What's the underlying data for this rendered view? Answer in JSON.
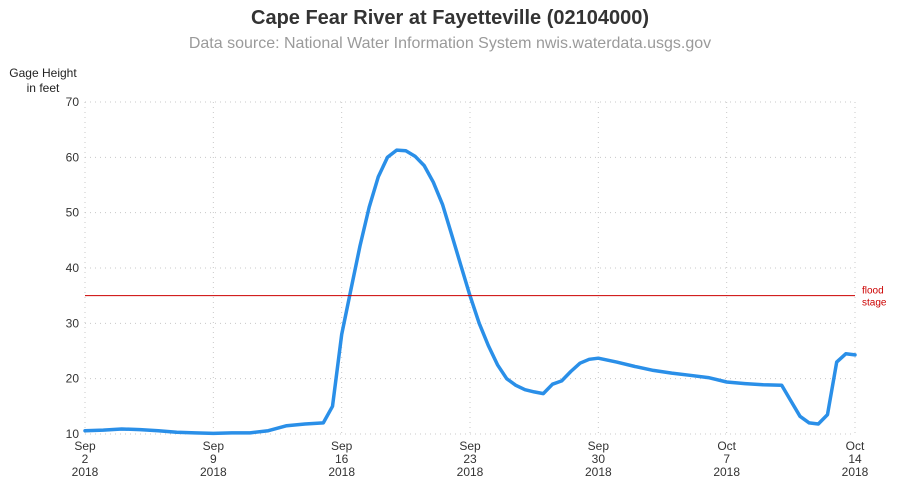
{
  "chart_data": {
    "type": "line",
    "title": "Cape Fear River at Fayetteville (02104000)",
    "subtitle": "Data source: National Water Information System nwis.waterdata.usgs.gov",
    "ylabel_lines": [
      "Gage Height",
      "in feet"
    ],
    "xlabel": "",
    "ylim": [
      10,
      70
    ],
    "yticks": [
      10,
      20,
      30,
      40,
      50,
      60,
      70
    ],
    "xlim": [
      "2018-09-02",
      "2018-10-14"
    ],
    "xticks": [
      {
        "date": "2018-09-02",
        "lines": [
          "Sep",
          "2",
          "2018"
        ]
      },
      {
        "date": "2018-09-09",
        "lines": [
          "Sep",
          "9",
          "2018"
        ]
      },
      {
        "date": "2018-09-16",
        "lines": [
          "Sep",
          "16",
          "2018"
        ]
      },
      {
        "date": "2018-09-23",
        "lines": [
          "Sep",
          "23",
          "2018"
        ]
      },
      {
        "date": "2018-09-30",
        "lines": [
          "Sep",
          "30",
          "2018"
        ]
      },
      {
        "date": "2018-10-07",
        "lines": [
          "Oct",
          "7",
          "2018"
        ]
      },
      {
        "date": "2018-10-14",
        "lines": [
          "Oct",
          "14",
          "2018"
        ]
      }
    ],
    "grid": "dotted",
    "series": [
      {
        "color": "#2a8fe8",
        "points": [
          [
            "2018-09-02",
            10.6
          ],
          [
            "2018-09-03",
            10.7
          ],
          [
            "2018-09-04",
            10.9
          ],
          [
            "2018-09-05",
            10.8
          ],
          [
            "2018-09-06",
            10.6
          ],
          [
            "2018-09-07",
            10.3
          ],
          [
            "2018-09-08",
            10.2
          ],
          [
            "2018-09-09",
            10.1
          ],
          [
            "2018-09-10",
            10.2
          ],
          [
            "2018-09-11",
            10.2
          ],
          [
            "2018-09-12",
            10.6
          ],
          [
            "2018-09-13",
            11.5
          ],
          [
            "2018-09-14",
            11.8
          ],
          [
            "2018-09-15",
            12.0
          ],
          [
            "2018-09-15 12:00",
            15.0
          ],
          [
            "2018-09-16",
            28.0
          ],
          [
            "2018-09-16 12:00",
            36.0
          ],
          [
            "2018-09-17",
            44.0
          ],
          [
            "2018-09-17 12:00",
            51.0
          ],
          [
            "2018-09-18",
            56.5
          ],
          [
            "2018-09-18 12:00",
            60.0
          ],
          [
            "2018-09-19",
            61.3
          ],
          [
            "2018-09-19 12:00",
            61.2
          ],
          [
            "2018-09-20",
            60.2
          ],
          [
            "2018-09-20 12:00",
            58.5
          ],
          [
            "2018-09-21",
            55.5
          ],
          [
            "2018-09-21 12:00",
            51.5
          ],
          [
            "2018-09-22",
            46.0
          ],
          [
            "2018-09-22 12:00",
            40.5
          ],
          [
            "2018-09-23",
            35.0
          ],
          [
            "2018-09-23 12:00",
            30.0
          ],
          [
            "2018-09-24",
            26.0
          ],
          [
            "2018-09-24 12:00",
            22.5
          ],
          [
            "2018-09-25",
            20.0
          ],
          [
            "2018-09-25 12:00",
            18.8
          ],
          [
            "2018-09-26",
            18.0
          ],
          [
            "2018-09-26 12:00",
            17.6
          ],
          [
            "2018-09-27",
            17.3
          ],
          [
            "2018-09-27 12:00",
            19.0
          ],
          [
            "2018-09-28",
            19.6
          ],
          [
            "2018-09-28 12:00",
            21.3
          ],
          [
            "2018-09-29",
            22.8
          ],
          [
            "2018-09-29 12:00",
            23.5
          ],
          [
            "2018-09-30",
            23.7
          ],
          [
            "2018-10-01",
            23.0
          ],
          [
            "2018-10-02",
            22.2
          ],
          [
            "2018-10-03",
            21.5
          ],
          [
            "2018-10-04",
            21.0
          ],
          [
            "2018-10-05",
            20.6
          ],
          [
            "2018-10-06",
            20.2
          ],
          [
            "2018-10-07",
            19.4
          ],
          [
            "2018-10-08",
            19.1
          ],
          [
            "2018-10-09",
            18.9
          ],
          [
            "2018-10-10",
            18.8
          ],
          [
            "2018-10-10 12:00",
            16.0
          ],
          [
            "2018-10-11",
            13.2
          ],
          [
            "2018-10-11 12:00",
            12.0
          ],
          [
            "2018-10-12",
            11.8
          ],
          [
            "2018-10-12 12:00",
            13.5
          ],
          [
            "2018-10-13",
            23.0
          ],
          [
            "2018-10-13 12:00",
            24.5
          ],
          [
            "2018-10-14",
            24.3
          ]
        ]
      }
    ],
    "reference_line": {
      "y": 35,
      "color": "#cc0000",
      "label_lines": [
        "flood",
        "stage"
      ]
    }
  }
}
